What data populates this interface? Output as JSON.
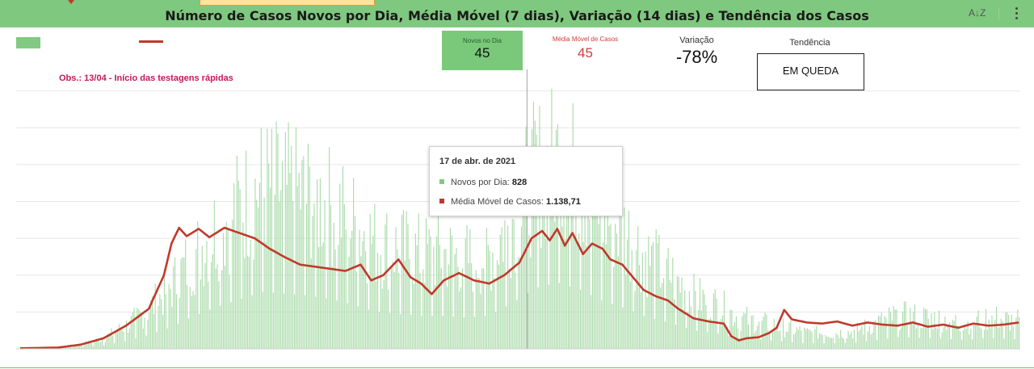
{
  "header": {
    "title": "Número de Casos Novos por Dia, Média Móvel (7 dias), Variação (14 dias) e Tendência dos Casos",
    "sort_icon": "sort-az-icon",
    "menu_icon": "more-vert-icon"
  },
  "kpis": {
    "novos": {
      "label": "Novos no Dia",
      "value": "45"
    },
    "media": {
      "label": "Média Móvel de Casos",
      "value": "45"
    },
    "variacao": {
      "label": "Variação",
      "value": "-78%"
    },
    "tendencia": {
      "label": "Tendência",
      "value": "EM QUEDA"
    }
  },
  "annotation": "Obs.: 13/04 - Início das testagens rápidas",
  "tooltip": {
    "date": "17 de abr. de 2021",
    "novos_label": "Novos por Dia:",
    "novos_value": "828",
    "media_label": "Média Móvel de Casos:",
    "media_value": "1.138,71"
  },
  "colors": {
    "bar": "#a9dba9",
    "line": "#c0392b",
    "header": "#7fc87f",
    "accent": "#c2185b"
  },
  "chart_data": {
    "type": "bar",
    "grid": true,
    "legend": "top-left",
    "ylim": [
      0,
      2800
    ],
    "highlight_index": 335,
    "series": [
      {
        "name": "Novos por Dia",
        "kind": "bar",
        "anchors": [
          [
            0,
            5
          ],
          [
            25,
            15
          ],
          [
            40,
            40
          ],
          [
            55,
            100
          ],
          [
            70,
            220
          ],
          [
            85,
            380
          ],
          [
            100,
            600
          ],
          [
            115,
            900
          ],
          [
            130,
            1150
          ],
          [
            145,
            1350
          ],
          [
            160,
            1550
          ],
          [
            175,
            1500
          ],
          [
            190,
            1450
          ],
          [
            205,
            1350
          ],
          [
            220,
            1200
          ],
          [
            235,
            1000
          ],
          [
            250,
            950
          ],
          [
            265,
            900
          ],
          [
            280,
            900
          ],
          [
            295,
            850
          ],
          [
            310,
            900
          ],
          [
            325,
            1250
          ],
          [
            340,
            1650
          ],
          [
            355,
            1800
          ],
          [
            370,
            1600
          ],
          [
            385,
            1300
          ],
          [
            400,
            1100
          ],
          [
            415,
            850
          ],
          [
            430,
            700
          ],
          [
            445,
            500
          ],
          [
            460,
            420
          ],
          [
            475,
            300
          ],
          [
            490,
            250
          ],
          [
            505,
            200
          ],
          [
            520,
            150
          ],
          [
            535,
            150
          ],
          [
            550,
            160
          ],
          [
            565,
            240
          ],
          [
            580,
            320
          ],
          [
            595,
            300
          ],
          [
            610,
            280
          ],
          [
            625,
            240
          ],
          [
            640,
            300
          ],
          [
            660,
            260
          ]
        ]
      },
      {
        "name": "Média Móvel de Casos",
        "kind": "line",
        "anchors": [
          [
            0,
            5
          ],
          [
            25,
            12
          ],
          [
            40,
            40
          ],
          [
            55,
            100
          ],
          [
            70,
            220
          ],
          [
            85,
            380
          ],
          [
            95,
            700
          ],
          [
            100,
            1000
          ],
          [
            105,
            1150
          ],
          [
            110,
            1070
          ],
          [
            118,
            1140
          ],
          [
            125,
            1060
          ],
          [
            135,
            1150
          ],
          [
            145,
            1100
          ],
          [
            155,
            1050
          ],
          [
            165,
            950
          ],
          [
            175,
            870
          ],
          [
            185,
            800
          ],
          [
            195,
            780
          ],
          [
            205,
            760
          ],
          [
            215,
            740
          ],
          [
            225,
            800
          ],
          [
            232,
            650
          ],
          [
            240,
            700
          ],
          [
            250,
            850
          ],
          [
            258,
            680
          ],
          [
            265,
            620
          ],
          [
            272,
            520
          ],
          [
            280,
            650
          ],
          [
            290,
            720
          ],
          [
            300,
            650
          ],
          [
            310,
            620
          ],
          [
            320,
            700
          ],
          [
            330,
            820
          ],
          [
            338,
            1050
          ],
          [
            345,
            1120
          ],
          [
            350,
            1030
          ],
          [
            355,
            1140
          ],
          [
            360,
            980
          ],
          [
            365,
            1100
          ],
          [
            372,
            900
          ],
          [
            378,
            1000
          ],
          [
            385,
            950
          ],
          [
            390,
            850
          ],
          [
            398,
            800
          ],
          [
            405,
            680
          ],
          [
            412,
            560
          ],
          [
            420,
            500
          ],
          [
            428,
            460
          ],
          [
            435,
            380
          ],
          [
            445,
            290
          ],
          [
            455,
            260
          ],
          [
            465,
            240
          ],
          [
            470,
            120
          ],
          [
            475,
            80
          ],
          [
            480,
            100
          ],
          [
            488,
            110
          ],
          [
            495,
            150
          ],
          [
            500,
            200
          ],
          [
            505,
            370
          ],
          [
            510,
            280
          ],
          [
            520,
            250
          ],
          [
            530,
            240
          ],
          [
            540,
            260
          ],
          [
            550,
            220
          ],
          [
            560,
            250
          ],
          [
            570,
            230
          ],
          [
            580,
            220
          ],
          [
            590,
            250
          ],
          [
            600,
            210
          ],
          [
            610,
            230
          ],
          [
            620,
            200
          ],
          [
            630,
            240
          ],
          [
            640,
            220
          ],
          [
            650,
            230
          ],
          [
            660,
            250
          ]
        ]
      }
    ]
  }
}
